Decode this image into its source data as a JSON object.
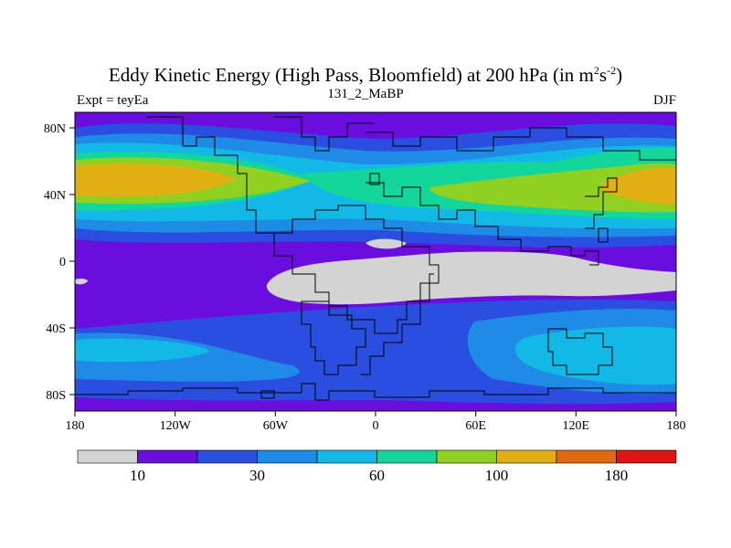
{
  "map": {
    "title": "Eddy Kinetic Energy (High Pass, Bloomfield) at 200 hPa (in m",
    "title_sup1": "2",
    "title_mid": "s",
    "title_sup2": "-2",
    "title_end": ")",
    "subtitle": "131_2_MaBP",
    "left_label": "Expt = teyEa",
    "right_label": "DJF",
    "lat_labels": [
      "80N",
      "40N",
      "0",
      "40S",
      "80S"
    ],
    "lon_labels": [
      "180",
      "120W",
      "60W",
      "0",
      "60E",
      "120E",
      "180"
    ]
  },
  "colorbar": {
    "colors": [
      "#d3d3d3",
      "#6a0ee0",
      "#2a4fe0",
      "#1e8be6",
      "#12b9e6",
      "#12d69a",
      "#90d020",
      "#e0b012",
      "#e06a12",
      "#e01414"
    ],
    "labels": [
      "10",
      "30",
      "60",
      "100",
      "180"
    ]
  }
}
